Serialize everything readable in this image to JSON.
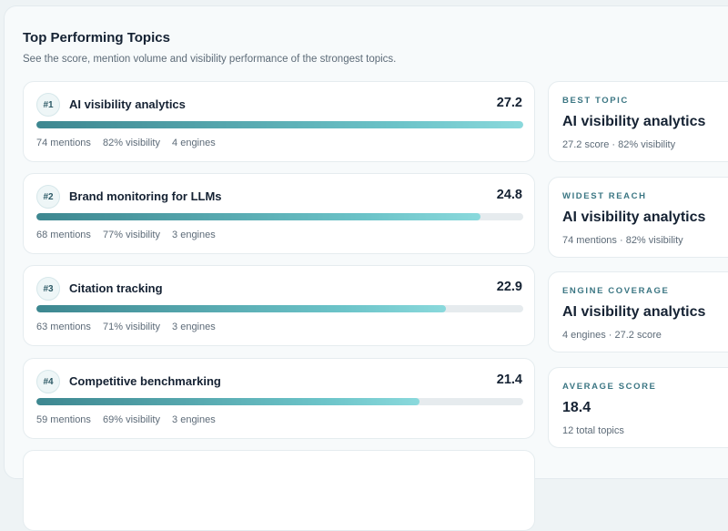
{
  "header": {
    "title": "Top Performing Topics",
    "subtitle": "See the score, mention volume and visibility performance of the strongest topics."
  },
  "topics": [
    {
      "rank": "#1",
      "name": "AI visibility analytics",
      "score": "27.2",
      "progress": 1.0,
      "mentions": "74 mentions",
      "visibility": "82% visibility",
      "engines": "4 engines"
    },
    {
      "rank": "#2",
      "name": "Brand monitoring for LLMs",
      "score": "24.8",
      "progress": 0.912,
      "mentions": "68 mentions",
      "visibility": "77% visibility",
      "engines": "3 engines"
    },
    {
      "rank": "#3",
      "name": "Citation tracking",
      "score": "22.9",
      "progress": 0.842,
      "mentions": "63 mentions",
      "visibility": "71% visibility",
      "engines": "3 engines"
    },
    {
      "rank": "#4",
      "name": "Competitive benchmarking",
      "score": "21.4",
      "progress": 0.787,
      "mentions": "59 mentions",
      "visibility": "69% visibility",
      "engines": "3 engines"
    }
  ],
  "stats": [
    {
      "label": "BEST TOPIC",
      "value": "AI visibility analytics",
      "sub": "27.2 score · 82% visibility"
    },
    {
      "label": "WIDEST REACH",
      "value": "AI visibility analytics",
      "sub": "74 mentions · 82% visibility"
    },
    {
      "label": "ENGINE COVERAGE",
      "value": "AI visibility analytics",
      "sub": "4 engines · 27.2 score"
    },
    {
      "label": "AVERAGE SCORE",
      "value": "18.4",
      "sub": "12 total topics"
    }
  ],
  "colors": {
    "accent": "#3d8790",
    "accent_light": "#8ad9dc",
    "label": "#3b7683"
  }
}
